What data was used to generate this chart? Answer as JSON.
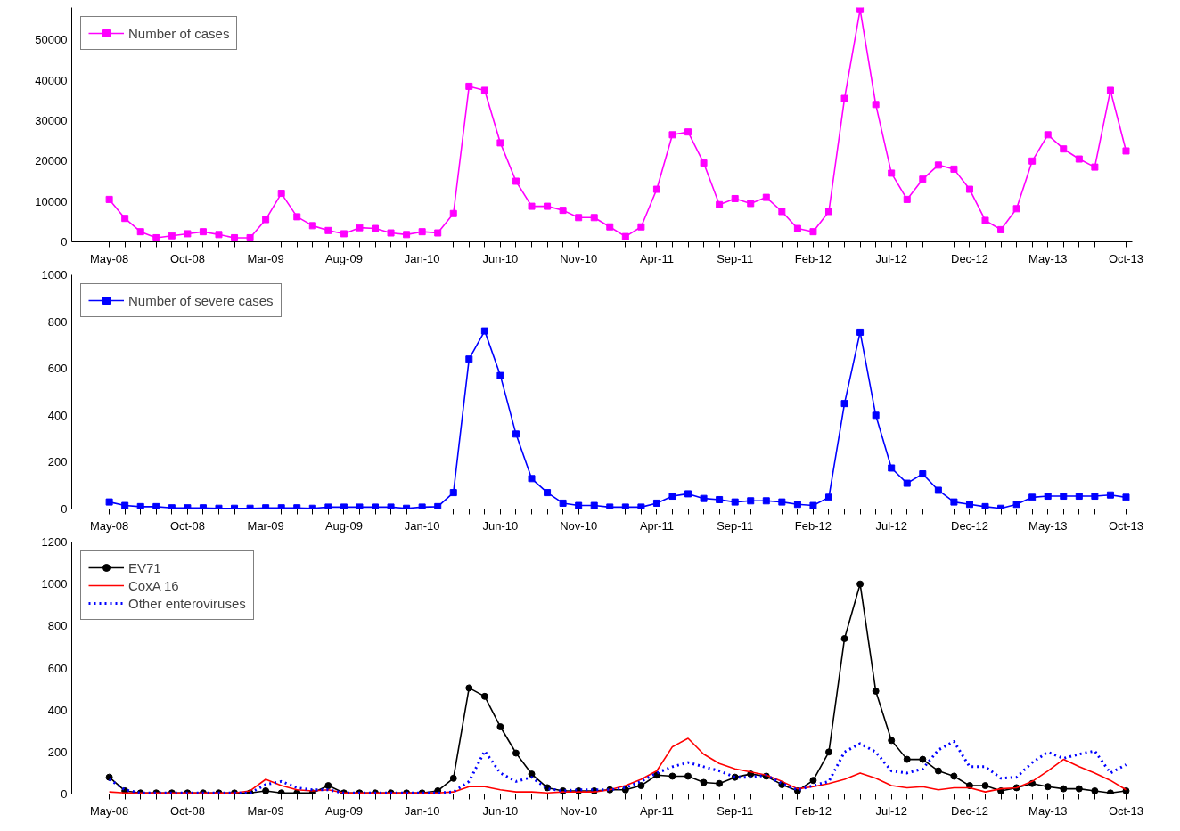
{
  "chart_data": [
    {
      "type": "line",
      "categories": [
        "May-08",
        null,
        null,
        null,
        null,
        "Oct-08",
        null,
        null,
        null,
        null,
        "Mar-09",
        null,
        null,
        null,
        null,
        "Aug-09",
        null,
        null,
        null,
        null,
        "Jan-10",
        null,
        null,
        null,
        null,
        "Jun-10",
        null,
        null,
        null,
        null,
        "Nov-10",
        null,
        null,
        null,
        null,
        "Apr-11",
        null,
        null,
        null,
        null,
        "Sep-11",
        null,
        null,
        null,
        null,
        "Feb-12",
        null,
        null,
        null,
        null,
        "Jul-12",
        null,
        null,
        null,
        null,
        "Dec-12",
        null,
        null,
        null,
        null,
        "May-13",
        null,
        null,
        null,
        null,
        "Oct-13"
      ],
      "series": [
        {
          "name": "Number of cases",
          "color": "#ff00ff",
          "values": [
            10500,
            5800,
            2500,
            1000,
            1500,
            2000,
            2500,
            1800,
            1000,
            1000,
            5500,
            12000,
            6200,
            4000,
            2800,
            2000,
            3500,
            3300,
            2200,
            1800,
            2500,
            2200,
            7000,
            38500,
            37500,
            24500,
            15000,
            8800,
            8800,
            7800,
            6000,
            6000,
            3700,
            1300,
            3700,
            13000,
            26500,
            27200,
            19500,
            9200,
            10700,
            9500,
            11000,
            7500,
            3300,
            2500,
            7500,
            35500,
            57500,
            34000,
            17000,
            10500,
            15500,
            19000,
            18000,
            13000,
            5300,
            3000,
            8200,
            20000,
            26500,
            23000,
            20500,
            18500,
            37500,
            22500
          ]
        }
      ],
      "ylim": [
        0,
        58000
      ],
      "yticks": [
        0,
        10000,
        20000,
        30000,
        40000,
        50000
      ],
      "marker": "square",
      "line_style": "solid",
      "legend": "top left",
      "grid": false
    },
    {
      "type": "line",
      "categories": [
        "May-08",
        null,
        null,
        null,
        null,
        "Oct-08",
        null,
        null,
        null,
        null,
        "Mar-09",
        null,
        null,
        null,
        null,
        "Aug-09",
        null,
        null,
        null,
        null,
        "Jan-10",
        null,
        null,
        null,
        null,
        "Jun-10",
        null,
        null,
        null,
        null,
        "Nov-10",
        null,
        null,
        null,
        null,
        "Apr-11",
        null,
        null,
        null,
        null,
        "Sep-11",
        null,
        null,
        null,
        null,
        "Feb-12",
        null,
        null,
        null,
        null,
        "Jul-12",
        null,
        null,
        null,
        null,
        "Dec-12",
        null,
        null,
        null,
        null,
        "May-13",
        null,
        null,
        null,
        null,
        "Oct-13"
      ],
      "series": [
        {
          "name": "Number of severe cases",
          "color": "#0000ff",
          "values": [
            30,
            15,
            10,
            10,
            5,
            5,
            5,
            3,
            3,
            3,
            5,
            5,
            5,
            3,
            8,
            8,
            8,
            8,
            8,
            3,
            8,
            10,
            70,
            640,
            760,
            570,
            320,
            130,
            70,
            25,
            15,
            15,
            8,
            8,
            8,
            25,
            55,
            65,
            45,
            40,
            30,
            35,
            35,
            30,
            20,
            15,
            50,
            450,
            755,
            400,
            175,
            110,
            150,
            80,
            30,
            20,
            10,
            3,
            20,
            50,
            55,
            55,
            55,
            55,
            60,
            50
          ]
        }
      ],
      "ylim": [
        0,
        1000
      ],
      "yticks": [
        0,
        200,
        400,
        600,
        800,
        1000
      ],
      "marker": "square",
      "line_style": "solid",
      "legend": "top left",
      "grid": false
    },
    {
      "type": "line",
      "categories": [
        "May-08",
        null,
        null,
        null,
        null,
        "Oct-08",
        null,
        null,
        null,
        null,
        "Mar-09",
        null,
        null,
        null,
        null,
        "Aug-09",
        null,
        null,
        null,
        null,
        "Jan-10",
        null,
        null,
        null,
        null,
        "Jun-10",
        null,
        null,
        null,
        null,
        "Nov-10",
        null,
        null,
        null,
        null,
        "Apr-11",
        null,
        null,
        null,
        null,
        "Sep-11",
        null,
        null,
        null,
        null,
        "Feb-12",
        null,
        null,
        null,
        null,
        "Jul-12",
        null,
        null,
        null,
        null,
        "Dec-12",
        null,
        null,
        null,
        null,
        "May-13",
        null,
        null,
        null,
        null,
        "Oct-13"
      ],
      "series": [
        {
          "name": "EV71",
          "color": "#000000",
          "marker": "circle",
          "line_style": "solid",
          "values": [
            80,
            15,
            5,
            5,
            5,
            5,
            5,
            5,
            5,
            5,
            15,
            5,
            5,
            5,
            40,
            5,
            5,
            5,
            5,
            5,
            5,
            15,
            75,
            505,
            465,
            320,
            195,
            95,
            30,
            15,
            15,
            15,
            20,
            20,
            40,
            90,
            85,
            85,
            55,
            50,
            80,
            95,
            85,
            45,
            15,
            65,
            200,
            740,
            1000,
            490,
            255,
            165,
            165,
            110,
            85,
            40,
            40,
            15,
            30,
            50,
            35,
            25,
            25,
            15,
            5,
            15
          ]
        },
        {
          "name": "CoxA 16",
          "color": "#ff0000",
          "marker": "none",
          "line_style": "solid",
          "values": [
            10,
            5,
            5,
            5,
            5,
            5,
            5,
            5,
            5,
            15,
            70,
            40,
            20,
            15,
            20,
            5,
            5,
            5,
            5,
            5,
            5,
            5,
            10,
            35,
            35,
            20,
            10,
            10,
            5,
            10,
            10,
            10,
            20,
            40,
            70,
            110,
            225,
            265,
            190,
            145,
            120,
            105,
            90,
            60,
            25,
            35,
            50,
            70,
            100,
            75,
            40,
            30,
            35,
            20,
            30,
            30,
            10,
            25,
            30,
            60,
            110,
            165,
            130,
            100,
            65,
            20
          ]
        },
        {
          "name": "Other enteroviruses",
          "color": "#0000ff",
          "marker": "none",
          "line_style": "dotted",
          "values": [
            70,
            20,
            5,
            5,
            5,
            5,
            5,
            5,
            5,
            5,
            45,
            60,
            30,
            20,
            20,
            5,
            5,
            5,
            5,
            5,
            5,
            5,
            10,
            60,
            205,
            100,
            60,
            80,
            25,
            15,
            20,
            20,
            20,
            30,
            60,
            100,
            130,
            150,
            130,
            110,
            80,
            80,
            90,
            50,
            20,
            40,
            60,
            200,
            240,
            200,
            110,
            100,
            120,
            210,
            250,
            130,
            130,
            75,
            80,
            150,
            200,
            170,
            190,
            205,
            100,
            140
          ]
        }
      ],
      "ylim": [
        0,
        1200
      ],
      "yticks": [
        0,
        200,
        400,
        600,
        800,
        1000,
        1200
      ],
      "legend": "top left",
      "grid": false
    }
  ]
}
